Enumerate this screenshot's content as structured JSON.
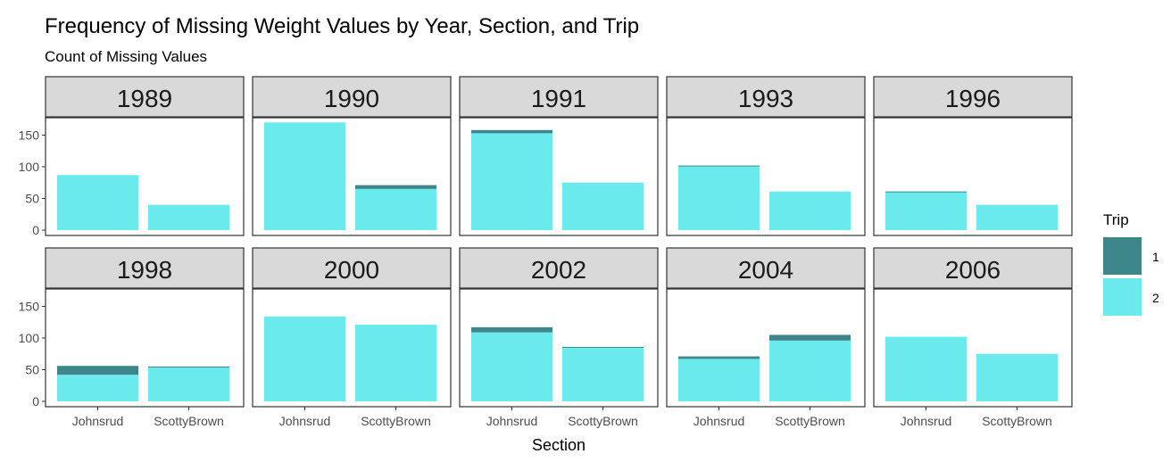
{
  "chart_data": {
    "type": "bar",
    "stacked": true,
    "title": "Frequency of Missing Weight Values by Year, Section, and Trip",
    "subtitle": "Count of Missing Values",
    "xlabel": "Section",
    "ylabel": "",
    "categories": [
      "Johnsrud",
      "ScottyBrown"
    ],
    "ylim": [
      0,
      180
    ],
    "yticks": [
      0,
      50,
      100,
      150
    ],
    "legend": {
      "title": "Trip",
      "position": "right",
      "items": [
        {
          "label": "1",
          "color": "#3d868a"
        },
        {
          "label": "2",
          "color": "#6aeaed"
        }
      ]
    },
    "panels": [
      {
        "year": "1989",
        "trip1": [
          0,
          0
        ],
        "trip2": [
          87,
          40
        ]
      },
      {
        "year": "1990",
        "trip1": [
          0,
          6
        ],
        "trip2": [
          170,
          65
        ]
      },
      {
        "year": "1991",
        "trip1": [
          5,
          0
        ],
        "trip2": [
          153,
          75
        ]
      },
      {
        "year": "1993",
        "trip1": [
          1,
          0
        ],
        "trip2": [
          101,
          61
        ]
      },
      {
        "year": "1996",
        "trip1": [
          1,
          0
        ],
        "trip2": [
          60,
          40
        ]
      },
      {
        "year": "1998",
        "trip1": [
          14,
          1
        ],
        "trip2": [
          42,
          54
        ]
      },
      {
        "year": "2000",
        "trip1": [
          0,
          0
        ],
        "trip2": [
          134,
          121
        ]
      },
      {
        "year": "2002",
        "trip1": [
          8,
          1
        ],
        "trip2": [
          109,
          85
        ]
      },
      {
        "year": "2004",
        "trip1": [
          4,
          9
        ],
        "trip2": [
          67,
          96
        ]
      },
      {
        "year": "2006",
        "trip1": [
          0,
          0
        ],
        "trip2": [
          102,
          75
        ]
      }
    ],
    "grid": false,
    "facet_strip_color": "#d9d9d9"
  }
}
